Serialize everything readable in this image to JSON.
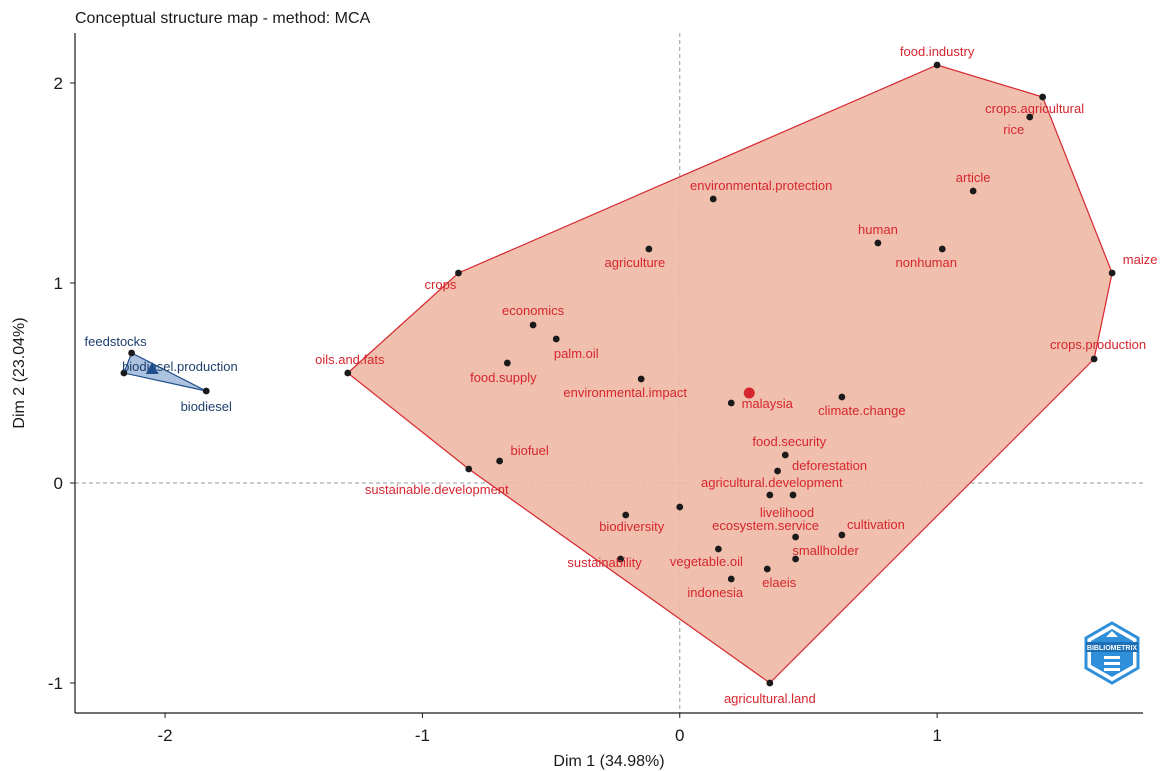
{
  "chart_data": {
    "type": "scatter",
    "title": "Conceptual structure map - method: MCA",
    "xlabel": "Dim 1 (34.98%)",
    "ylabel": "Dim 2 (23.04%)",
    "xlim": [
      -2.35,
      1.8
    ],
    "ylim": [
      -1.15,
      2.25
    ],
    "x_ticks": [
      {
        "value": -2,
        "label": "-2"
      },
      {
        "value": -1,
        "label": "-1"
      },
      {
        "value": 0,
        "label": "0"
      },
      {
        "value": 1,
        "label": "1"
      }
    ],
    "y_ticks": [
      {
        "value": -1,
        "label": "-1"
      },
      {
        "value": 0,
        "label": "0"
      },
      {
        "value": 1,
        "label": "1"
      },
      {
        "value": 2,
        "label": "2"
      }
    ],
    "reference_lines": {
      "x": 0,
      "y": 0,
      "style": "dashed"
    },
    "grid": false,
    "logo_text": "BIBLIOMETRIX",
    "clusters": [
      {
        "id": "cluster-1",
        "fill": "#efb8a4",
        "stroke": "#d5262f",
        "label_color": "#d5262f",
        "centroid": {
          "x": 0.27,
          "y": 0.45,
          "marker": "circle"
        },
        "points": [
          {
            "label": "food.industry",
            "x": 1.0,
            "y": 2.09
          },
          {
            "label": "crops.agricultural",
            "x": 1.41,
            "y": 1.93
          },
          {
            "label": "rice",
            "x": 1.36,
            "y": 1.83
          },
          {
            "label": "article",
            "x": 1.14,
            "y": 1.46
          },
          {
            "label": "environmental.protection",
            "x": 0.13,
            "y": 1.42
          },
          {
            "label": "human",
            "x": 0.77,
            "y": 1.2
          },
          {
            "label": "nonhuman",
            "x": 1.02,
            "y": 1.17
          },
          {
            "label": "agriculture",
            "x": -0.12,
            "y": 1.17
          },
          {
            "label": "maize",
            "x": 1.68,
            "y": 1.05
          },
          {
            "label": "crops",
            "x": -0.86,
            "y": 1.05
          },
          {
            "label": "economics",
            "x": -0.57,
            "y": 0.79
          },
          {
            "label": "palm.oil",
            "x": -0.48,
            "y": 0.72
          },
          {
            "label": "crops.production",
            "x": 1.61,
            "y": 0.62
          },
          {
            "label": "food.supply",
            "x": -0.67,
            "y": 0.6
          },
          {
            "label": "oils.and.fats",
            "x": -1.29,
            "y": 0.55
          },
          {
            "label": "environmental.impact",
            "x": -0.15,
            "y": 0.52
          },
          {
            "label": "climate.change",
            "x": 0.63,
            "y": 0.43
          },
          {
            "label": "malaysia",
            "x": 0.2,
            "y": 0.4
          },
          {
            "label": "food.security",
            "x": 0.41,
            "y": 0.14
          },
          {
            "label": "biofuel",
            "x": -0.7,
            "y": 0.11
          },
          {
            "label": "sustainable.development",
            "x": -0.82,
            "y": 0.07
          },
          {
            "label": "deforestation",
            "x": 0.38,
            "y": 0.06
          },
          {
            "label": "agricultural.development",
            "x": 0.35,
            "y": -0.06
          },
          {
            "label": "livelihood",
            "x": 0.44,
            "y": -0.06
          },
          {
            "label": "",
            "x": 0.0,
            "y": -0.12
          },
          {
            "label": "biodiversity",
            "x": -0.21,
            "y": -0.16
          },
          {
            "label": "ecosystem.service",
            "x": 0.45,
            "y": -0.27
          },
          {
            "label": "cultivation",
            "x": 0.63,
            "y": -0.26
          },
          {
            "label": "vegetable.oil",
            "x": 0.15,
            "y": -0.33
          },
          {
            "label": "smallholder",
            "x": 0.45,
            "y": -0.38
          },
          {
            "label": "sustainability",
            "x": -0.23,
            "y": -0.38
          },
          {
            "label": "elaeis",
            "x": 0.34,
            "y": -0.43
          },
          {
            "label": "indonesia",
            "x": 0.2,
            "y": -0.48
          },
          {
            "label": "agricultural.land",
            "x": 0.35,
            "y": -1.0
          }
        ]
      },
      {
        "id": "cluster-2",
        "fill": "#9db7d8",
        "stroke": "#1f4e8c",
        "label_color": "#1d3f6e",
        "centroid": {
          "x": -2.05,
          "y": 0.57,
          "marker": "triangle"
        },
        "points": [
          {
            "label": "feedstocks",
            "x": -2.13,
            "y": 0.65
          },
          {
            "label": "biodiesel.production",
            "x": -2.16,
            "y": 0.55
          },
          {
            "label": "biodiesel",
            "x": -1.84,
            "y": 0.46
          }
        ]
      }
    ]
  }
}
